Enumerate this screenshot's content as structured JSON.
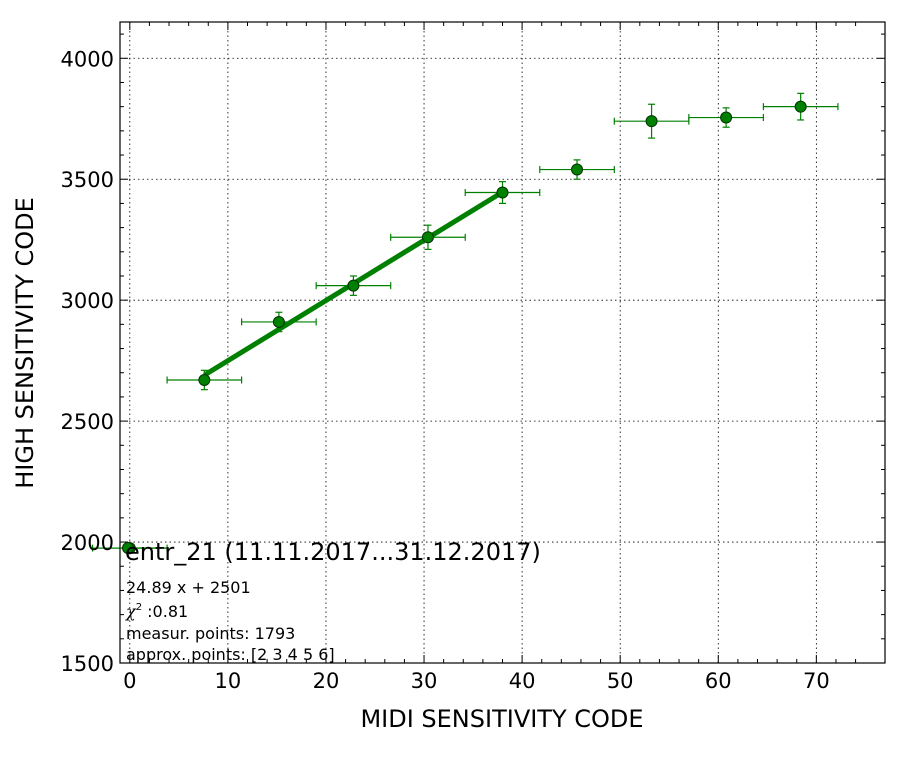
{
  "chart_data": {
    "type": "scatter",
    "title": "",
    "xlabel": "MIDI SENSITIVITY CODE",
    "ylabel": "HIGH SENSITIVITY CODE",
    "xlim": [
      -1,
      77
    ],
    "ylim": [
      1500,
      4150
    ],
    "xticks": [
      0,
      10,
      20,
      30,
      40,
      50,
      60,
      70
    ],
    "yticks": [
      1500,
      2000,
      2500,
      3000,
      3500,
      4000
    ],
    "grid": true,
    "colors": {
      "points": "#008000",
      "edge": "#003300",
      "fit": "#008000"
    },
    "series": [
      {
        "x": [
          0,
          7.6,
          15.2,
          22.8,
          30.4,
          38.0,
          45.6,
          53.2,
          60.8,
          68.4
        ],
        "y": [
          1975,
          2670,
          2910,
          3060,
          3260,
          3445,
          3540,
          3740,
          3755,
          3800
        ],
        "xerr": [
          3.8,
          3.8,
          3.8,
          3.8,
          3.8,
          3.8,
          3.8,
          3.8,
          3.8,
          3.8
        ],
        "yerr": [
          10,
          40,
          40,
          40,
          50,
          45,
          40,
          70,
          40,
          55
        ]
      }
    ],
    "fit": {
      "slope": 24.89,
      "intercept": 2501,
      "x_from": 7.6,
      "x_to": 38.0
    },
    "legend": {
      "title": "entr_21 (11.11.2017...31.12.2017)",
      "position": "bottom-left"
    },
    "annotations": {
      "equation": "24.89 x + 2501",
      "chi_symbol": "χ",
      "chi_sup": "2",
      "chi_value": " :0.81",
      "measur": "measur. points: 1793",
      "approx": "approx. points: [2 3 4 5 6]"
    }
  }
}
